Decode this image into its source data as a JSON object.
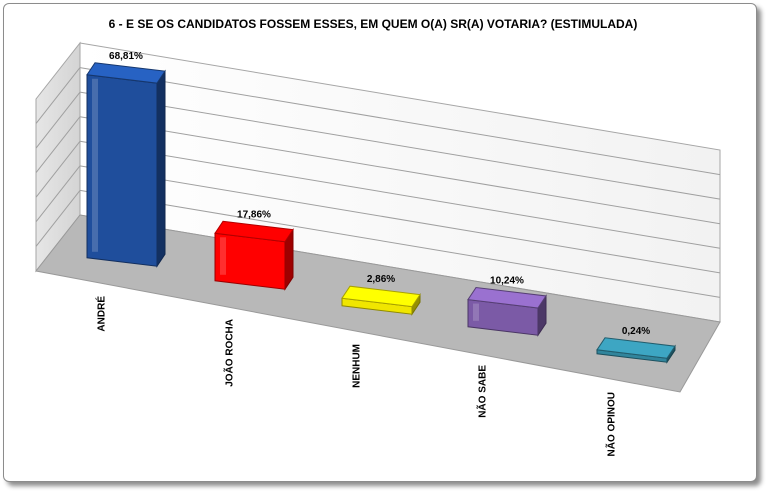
{
  "chart_data": {
    "type": "bar",
    "title": "6 - E SE OS CANDIDATOS FOSSEM ESSES, EM QUEM O(A) SR(A) VOTARIA? (ESTIMULADA)",
    "categories": [
      "ANDRÉ",
      "JOÃO ROCHA",
      "NENHUM",
      "NÃO SABE",
      "NÃO OPINOU"
    ],
    "values": [
      68.81,
      17.86,
      2.86,
      10.24,
      0.24
    ],
    "data_labels": [
      "68,81%",
      "17,86%",
      "2,86%",
      "10,24%",
      "0,24%"
    ],
    "colors": [
      "#1f4e9c",
      "#ff0000",
      "#f0e600",
      "#7b5aa6",
      "#31859c"
    ],
    "ylim": [
      0,
      70
    ],
    "grid": true,
    "legend": "none",
    "style": "3d"
  }
}
